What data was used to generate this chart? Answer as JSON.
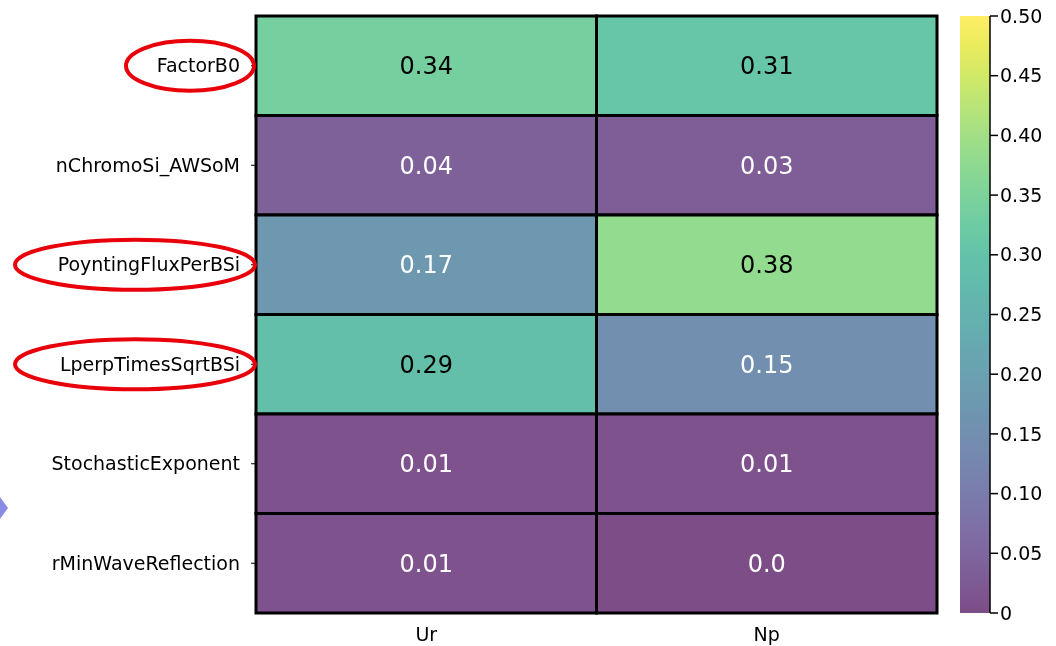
{
  "chart_data": {
    "type": "heatmap",
    "categories": [
      "Ur",
      "Np"
    ],
    "y_categories": [
      "FactorB0",
      "nChromoSi_AWSoM",
      "PoyntingFluxPerBSi",
      "LperpTimesSqrtBSi",
      "StochasticExponent",
      "rMinWaveReflection"
    ],
    "cells": [
      [
        0.34,
        0.31
      ],
      [
        0.04,
        0.03
      ],
      [
        0.17,
        0.38
      ],
      [
        0.29,
        0.15
      ],
      [
        0.01,
        0.01
      ],
      [
        0.01,
        0.0
      ]
    ],
    "cell_labels": [
      [
        "0.34",
        "0.31"
      ],
      [
        "0.04",
        "0.03"
      ],
      [
        "0.17",
        "0.38"
      ],
      [
        "0.29",
        "0.15"
      ],
      [
        "0.01",
        "0.01"
      ],
      [
        "0.01",
        "0.0"
      ]
    ],
    "clim": [
      0,
      0.5
    ],
    "cticks": [
      {
        "value": 0,
        "label": "0"
      },
      {
        "value": 0.05,
        "label": "0.05"
      },
      {
        "value": 0.1,
        "label": "0.10"
      },
      {
        "value": 0.15,
        "label": "0.15"
      },
      {
        "value": 0.2,
        "label": "0.20"
      },
      {
        "value": 0.25,
        "label": "0.25"
      },
      {
        "value": 0.3,
        "label": "0.30"
      },
      {
        "value": 0.35,
        "label": "0.35"
      },
      {
        "value": 0.4,
        "label": "0.40"
      },
      {
        "value": 0.45,
        "label": "0.45"
      },
      {
        "value": 0.5,
        "label": "0.50"
      }
    ]
  }
}
